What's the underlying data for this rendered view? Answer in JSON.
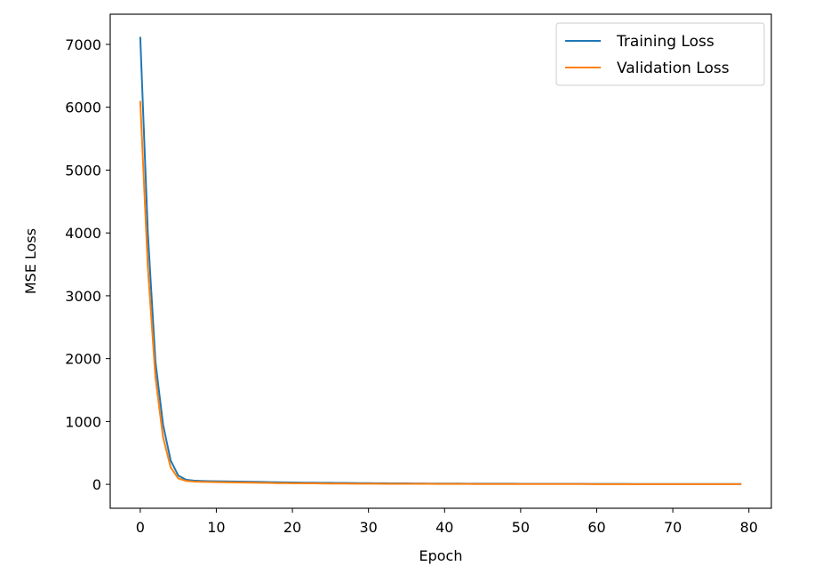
{
  "chart_data": {
    "type": "line",
    "title": "",
    "xlabel": "Epoch",
    "ylabel": "MSE Loss",
    "xlim": [
      -3.95,
      82.95
    ],
    "ylim": [
      -380,
      7480
    ],
    "xticks": [
      0,
      10,
      20,
      30,
      40,
      50,
      60,
      70,
      80
    ],
    "yticks": [
      0,
      1000,
      2000,
      3000,
      4000,
      5000,
      6000,
      7000
    ],
    "grid": false,
    "legend_position": "top-right",
    "x": [
      0,
      1,
      2,
      3,
      4,
      5,
      6,
      7,
      8,
      9,
      10,
      11,
      12,
      13,
      14,
      15,
      16,
      17,
      18,
      19,
      20,
      21,
      22,
      23,
      24,
      25,
      26,
      27,
      28,
      29,
      30,
      31,
      32,
      33,
      34,
      35,
      36,
      37,
      38,
      39,
      40,
      41,
      42,
      43,
      44,
      45,
      46,
      47,
      48,
      49,
      50,
      51,
      52,
      53,
      54,
      55,
      56,
      57,
      58,
      59,
      60,
      61,
      62,
      63,
      64,
      65,
      66,
      67,
      68,
      69,
      70,
      71,
      72,
      73,
      74,
      75,
      76,
      77,
      78,
      79
    ],
    "series": [
      {
        "name": "Training Loss",
        "color": "#1f77b4",
        "values": [
          7120,
          4000,
          1950,
          950,
          380,
          140,
          75,
          60,
          55,
          52,
          50,
          48,
          46,
          44,
          42,
          40,
          38,
          36,
          34,
          32,
          30,
          28,
          27,
          26,
          25,
          24,
          23,
          22,
          21,
          20,
          19,
          18,
          17,
          16,
          15,
          15,
          14,
          14,
          13,
          13,
          12,
          12,
          12,
          11,
          11,
          11,
          10,
          10,
          10,
          10,
          9,
          9,
          9,
          9,
          8,
          8,
          8,
          8,
          8,
          7,
          7,
          7,
          7,
          7,
          7,
          6,
          6,
          6,
          6,
          6,
          6,
          6,
          5,
          5,
          5,
          5,
          5,
          5,
          5,
          5
        ]
      },
      {
        "name": "Validation Loss",
        "color": "#ff7f0e",
        "values": [
          6100,
          3450,
          1700,
          750,
          270,
          95,
          55,
          45,
          40,
          38,
          36,
          34,
          32,
          30,
          28,
          26,
          24,
          22,
          20,
          19,
          18,
          17,
          16,
          15,
          14,
          13,
          12,
          12,
          11,
          11,
          10,
          10,
          9,
          9,
          9,
          8,
          8,
          8,
          8,
          7,
          7,
          7,
          7,
          7,
          6,
          6,
          6,
          6,
          6,
          6,
          6,
          5,
          5,
          5,
          5,
          5,
          5,
          5,
          5,
          5,
          4,
          4,
          4,
          4,
          4,
          4,
          4,
          4,
          4,
          4,
          4,
          4,
          4,
          4,
          3,
          3,
          3,
          3,
          3,
          3
        ]
      }
    ]
  }
}
